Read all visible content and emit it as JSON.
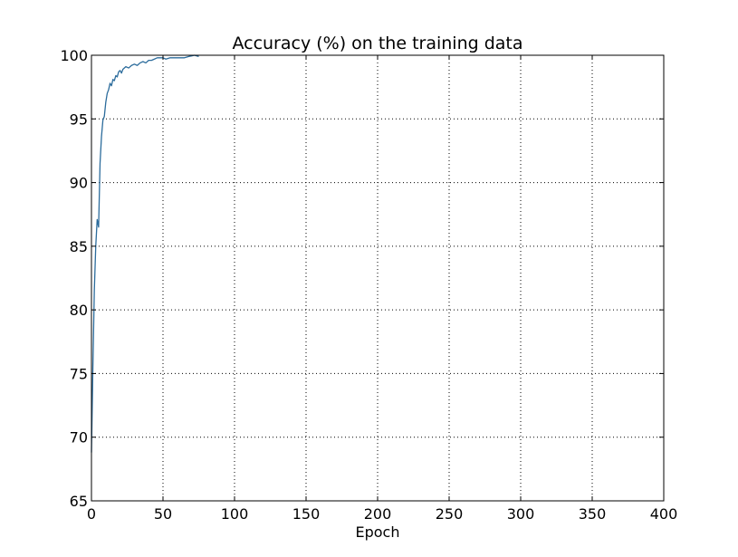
{
  "chart_data": {
    "type": "line",
    "title": "Accuracy (%) on the training data",
    "xlabel": "Epoch",
    "ylabel": "",
    "xlim": [
      0,
      400
    ],
    "ylim": [
      65,
      100
    ],
    "xticks": [
      0,
      50,
      100,
      150,
      200,
      250,
      300,
      350,
      400
    ],
    "yticks": [
      65,
      70,
      75,
      80,
      85,
      90,
      95,
      100
    ],
    "xtick_labels": [
      "0",
      "50",
      "100",
      "150",
      "200",
      "250",
      "300",
      "350",
      "400"
    ],
    "ytick_labels": [
      "65",
      "70",
      "75",
      "80",
      "85",
      "90",
      "95",
      "100"
    ],
    "grid": true,
    "legend": "none",
    "line_color": "#2c6c9c",
    "series": [
      {
        "x": [
          0,
          1,
          2,
          3,
          4,
          5,
          6,
          7,
          8,
          9,
          10,
          11,
          12,
          13,
          14,
          15,
          16,
          17,
          18,
          19,
          20,
          21,
          22,
          24,
          26,
          28,
          30,
          32,
          34,
          36,
          38,
          40,
          42,
          44,
          46,
          48,
          50,
          52,
          55,
          60,
          65,
          68,
          70,
          72,
          75
        ],
        "y": [
          68.8,
          75.5,
          81.5,
          85.0,
          87.1,
          86.5,
          91.5,
          93.6,
          94.9,
          95.2,
          96.3,
          97.0,
          97.3,
          97.8,
          97.6,
          98.1,
          98.0,
          98.4,
          98.3,
          98.7,
          98.8,
          98.6,
          98.9,
          99.1,
          99.0,
          99.2,
          99.3,
          99.2,
          99.4,
          99.5,
          99.4,
          99.6,
          99.6,
          99.7,
          99.8,
          99.8,
          99.8,
          99.7,
          99.8,
          99.8,
          99.8,
          99.9,
          99.95,
          100.0,
          99.9
        ]
      }
    ]
  }
}
